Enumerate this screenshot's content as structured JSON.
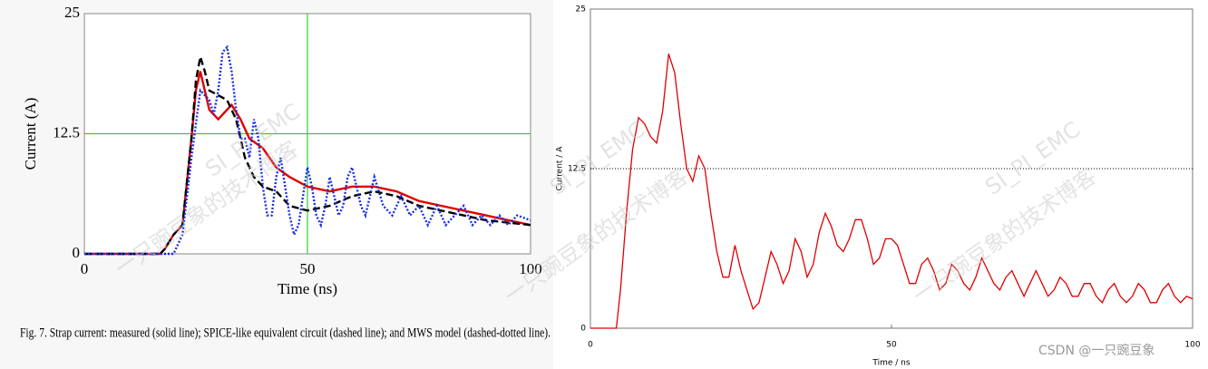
{
  "chart_data": [
    {
      "type": "line",
      "xlabel": "Time (ns)",
      "ylabel": "Current (A)",
      "caption": "Fig. 7.   Strap current: measured (solid line); SPICE-like equivalent circuit (dashed line); and MWS model (dashed-dotted line).",
      "xlim": [
        0,
        100
      ],
      "ylim": [
        0,
        25
      ],
      "xticks": [
        0,
        50,
        100
      ],
      "yticks": [
        0,
        12.5,
        25
      ],
      "grid": true,
      "grid_color": "#33cc33",
      "series": [
        {
          "color": "#e00000",
          "style": "solid",
          "x": [
            0,
            17,
            18,
            20,
            22,
            24,
            25,
            26,
            27,
            28,
            29,
            30,
            32,
            33,
            35,
            37,
            40,
            43,
            46,
            50,
            55,
            60,
            65,
            70,
            75,
            80,
            85,
            90,
            95,
            100
          ],
          "values": [
            0,
            0,
            0.5,
            2,
            3,
            12,
            17,
            19,
            17,
            15,
            14.5,
            14,
            15,
            15.5,
            14,
            12,
            11,
            9,
            8,
            7,
            6.5,
            7,
            7,
            6.5,
            5.5,
            5,
            4.5,
            4,
            3.5,
            3
          ]
        },
        {
          "color": "#000000",
          "style": "dashed",
          "x": [
            0,
            17,
            18,
            20,
            22,
            24,
            25,
            26,
            27,
            28,
            30,
            32,
            34,
            36,
            38,
            40,
            43,
            46,
            50,
            55,
            60,
            65,
            70,
            75,
            80,
            85,
            90,
            100
          ],
          "values": [
            0,
            0,
            0.5,
            2,
            3,
            12,
            18,
            20.5,
            19,
            17,
            16.5,
            16,
            14,
            10,
            8,
            7,
            6.5,
            5,
            4.5,
            5,
            6,
            6.5,
            6,
            5,
            4.5,
            4,
            3.5,
            3
          ]
        },
        {
          "color": "#1a2ee0",
          "style": "dotted",
          "x": [
            0,
            20,
            22,
            24,
            26,
            28,
            29,
            30,
            31,
            32,
            33,
            34,
            35,
            36,
            37,
            38,
            39,
            40,
            41,
            42,
            43,
            44,
            45,
            46,
            47,
            48,
            49,
            50,
            51,
            52,
            53,
            54,
            55,
            56,
            57,
            58,
            59,
            60,
            61,
            62,
            63,
            64,
            65,
            67,
            69,
            71,
            73,
            75,
            77,
            79,
            81,
            83,
            85,
            87,
            89,
            91,
            93,
            95,
            97,
            100
          ],
          "values": [
            0,
            0,
            2,
            10,
            17,
            16,
            14.5,
            17,
            21,
            21.5,
            19,
            15,
            12,
            12,
            10,
            14,
            12,
            7,
            4,
            4,
            8,
            10,
            7,
            4,
            2,
            3,
            6,
            9,
            7,
            4,
            3,
            5,
            8,
            6,
            4,
            5,
            8,
            9,
            7,
            5,
            4,
            6,
            8,
            5,
            4,
            6,
            4,
            5,
            3,
            5,
            3,
            4,
            5,
            3,
            4,
            3,
            4,
            3,
            4,
            3.5
          ]
        }
      ]
    },
    {
      "type": "line",
      "xlabel": "Time / ns",
      "ylabel": "Current / A",
      "xlim": [
        0,
        100
      ],
      "ylim": [
        0,
        25
      ],
      "xticks": [
        0,
        50,
        100
      ],
      "yticks": [
        0,
        12.5,
        25
      ],
      "grid": true,
      "grid_color": "#000000",
      "series": [
        {
          "color": "#e00000",
          "style": "solid",
          "x": [
            0,
            4.3,
            5,
            6,
            7,
            8,
            9,
            10,
            11,
            12,
            13,
            14,
            15,
            16,
            17,
            18,
            19,
            20,
            21,
            22,
            23,
            24,
            25,
            26,
            27,
            28,
            29,
            30,
            31,
            32,
            33,
            34,
            35,
            36,
            37,
            38,
            39,
            40,
            41,
            42,
            43,
            44,
            45,
            46,
            47,
            48,
            49,
            50,
            51,
            52,
            53,
            54,
            55,
            56,
            57,
            58,
            59,
            60,
            61,
            62,
            63,
            64,
            65,
            66,
            67,
            68,
            69,
            70,
            71,
            72,
            73,
            74,
            75,
            76,
            77,
            78,
            79,
            80,
            81,
            82,
            83,
            84,
            85,
            86,
            87,
            88,
            89,
            90,
            91,
            92,
            93,
            94,
            95,
            96,
            97,
            98,
            99,
            100
          ],
          "values": [
            0,
            0,
            3,
            9,
            14,
            16.5,
            16,
            15,
            14.5,
            17,
            21.5,
            20,
            16,
            12.5,
            11.5,
            13.5,
            12.5,
            9,
            6,
            4,
            4,
            6.5,
            4.5,
            3,
            1.5,
            2,
            4,
            6,
            5,
            3.5,
            4.5,
            7,
            6,
            4,
            5,
            7.5,
            9,
            8,
            6.5,
            6,
            7,
            8.5,
            8.5,
            7,
            5,
            5.5,
            7,
            7,
            6.5,
            5,
            3.5,
            3.5,
            5,
            5.5,
            4.5,
            3,
            3.5,
            5,
            4.5,
            3.5,
            3,
            4,
            5.5,
            4.5,
            3.5,
            3,
            4,
            4.5,
            3.5,
            2.5,
            3.5,
            4.5,
            3.5,
            2.5,
            3,
            4,
            3.5,
            2.5,
            2.5,
            3.5,
            3.5,
            2.5,
            2,
            3,
            3.5,
            2.5,
            2,
            2.5,
            3.5,
            3,
            2,
            2,
            3,
            3.5,
            2.5,
            2,
            2.5,
            2.3
          ]
        }
      ],
      "footer": "CSDN @一只豌豆象"
    }
  ],
  "watermarks": [
    "一只豌豆象的技术博客",
    "SI_PI_EMC"
  ]
}
